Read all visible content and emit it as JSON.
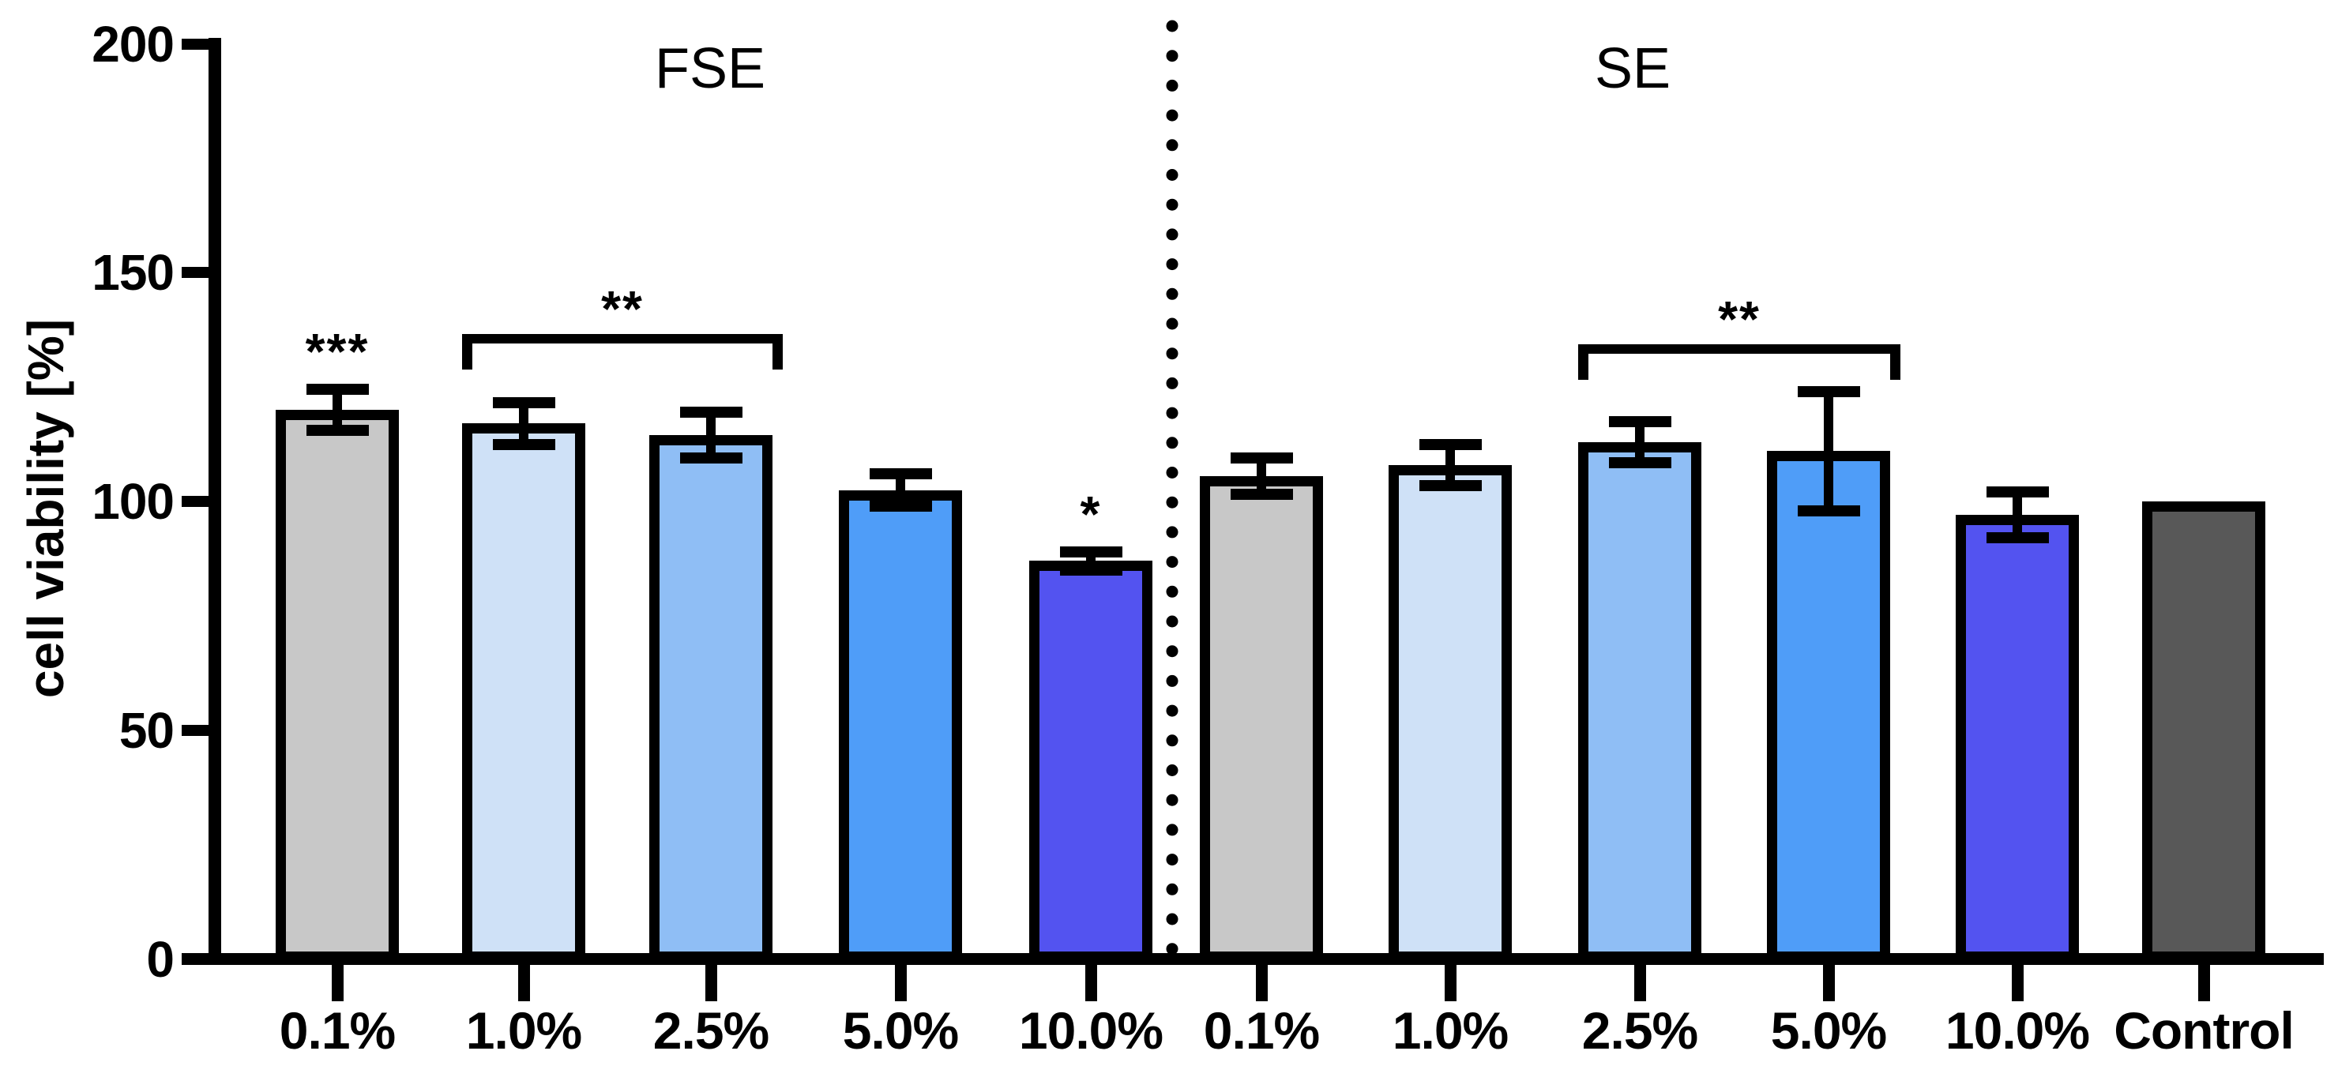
{
  "figure": {
    "background_color": "#FFFFFF",
    "divider_style": "vertical dotted line between groups"
  },
  "chart_data": {
    "type": "bar",
    "title": "",
    "xlabel": "",
    "ylabel": "cell viability [%]",
    "ylim": [
      0,
      200
    ],
    "yticks": [
      0,
      50,
      100,
      150,
      200
    ],
    "grid": false,
    "legend": false,
    "error_bars": "mean ± SD with caps",
    "bar_outline_color": "#000000",
    "divider": "dotted",
    "groups": [
      {
        "label": "FSE",
        "categories": [
          "0.1%",
          "1.0%",
          "2.5%",
          "5.0%",
          "10.0%"
        ],
        "values": [
          120,
          117,
          114.5,
          102.5,
          87
        ],
        "errors": [
          4.5,
          4.5,
          5,
          3.5,
          2
        ],
        "bar_colors": [
          "#C8C8C8",
          "#CFE1F7",
          "#8FBEF5",
          "#4F9DF8",
          "#5353F0"
        ],
        "significance": [
          "***",
          null,
          null,
          null,
          "*"
        ],
        "bracket": {
          "from": "1.0%",
          "to": "2.5%",
          "label": "**",
          "height_value": 136.5
        }
      },
      {
        "label": "SE",
        "categories": [
          "0.1%",
          "1.0%",
          "2.5%",
          "5.0%",
          "10.0%",
          "Control"
        ],
        "values": [
          105.5,
          108,
          113,
          111,
          97,
          100
        ],
        "errors": [
          4,
          4.5,
          4.5,
          13,
          5,
          0
        ],
        "bar_colors": [
          "#C8C8C8",
          "#CFE1F7",
          "#8FBEF5",
          "#4F9DF8",
          "#5353F0",
          "#585858"
        ],
        "significance": [
          null,
          null,
          null,
          null,
          null,
          null
        ],
        "bracket": {
          "from": "2.5%",
          "to": "5.0%",
          "label": "**",
          "height_value": 134.3
        }
      }
    ]
  }
}
